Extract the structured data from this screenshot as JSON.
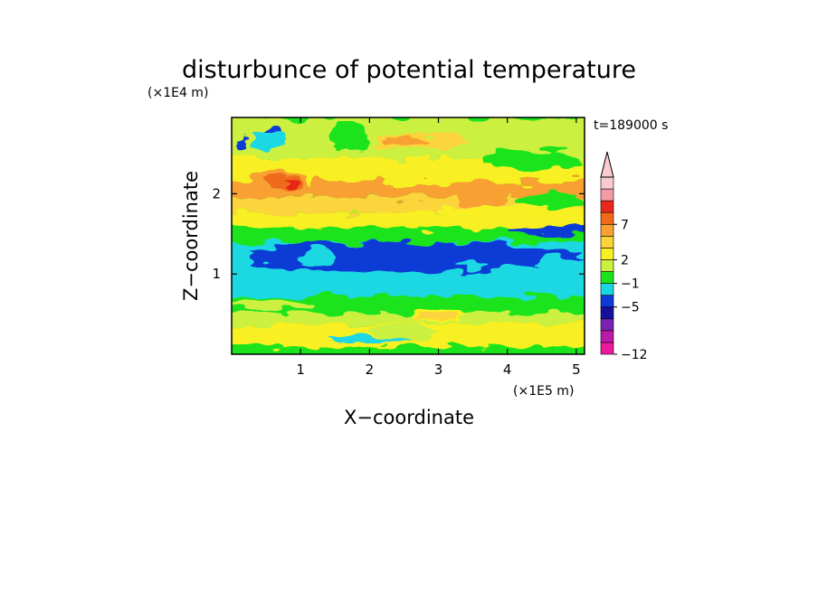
{
  "chart_data": {
    "type": "heatmap",
    "title": "disturbunce of potential temperature",
    "xlabel": "X−coordinate",
    "ylabel": "Z−coordinate",
    "x_unit": "(×1E5 m)",
    "y_unit": "(×1E4 m)",
    "time_label": "t=189000 s",
    "xlim": [
      0,
      5.12
    ],
    "ylim": [
      0,
      2.95
    ],
    "x_ticks": [
      1,
      2,
      3,
      4,
      5
    ],
    "y_ticks": [
      1,
      2
    ],
    "x_tick_labels": [
      "1",
      "2",
      "3",
      "4",
      "5"
    ],
    "y_tick_labels": [
      "1",
      "2"
    ],
    "colorbar": {
      "colors": [
        "#ee1a9e",
        "#bb1aa8",
        "#7a22b4",
        "#17109e",
        "#0e3bd6",
        "#1ad8e2",
        "#1ce41c",
        "#ccf040",
        "#f8f020",
        "#fcd43a",
        "#f8a030",
        "#f06a1a",
        "#e82818",
        "#f49aa6",
        "#f7cbcf"
      ],
      "tick_labels": [
        "−12",
        "−5",
        "−1",
        "2",
        "7"
      ],
      "extend_top": true
    },
    "field_bands": [
      {
        "z": [
          0.0,
          0.1
        ],
        "level": "green"
      },
      {
        "z": [
          0.1,
          0.38
        ],
        "level": "yellow"
      },
      {
        "z": [
          0.38,
          0.52
        ],
        "level": "lime"
      },
      {
        "z": [
          0.52,
          0.72
        ],
        "level": "green"
      },
      {
        "z": [
          0.72,
          0.98
        ],
        "level": "cyan"
      },
      {
        "z": [
          0.98,
          1.4
        ],
        "level": "cyan"
      },
      {
        "z": [
          1.4,
          1.58
        ],
        "level": "green"
      },
      {
        "z": [
          1.58,
          1.76
        ],
        "level": "yellow"
      },
      {
        "z": [
          1.76,
          1.95
        ],
        "level": "gold"
      },
      {
        "z": [
          1.95,
          2.15
        ],
        "level": "orange"
      },
      {
        "z": [
          2.15,
          2.45
        ],
        "level": "yellow"
      },
      {
        "z": [
          2.45,
          2.95
        ],
        "level": "lime"
      }
    ],
    "grid": false
  }
}
